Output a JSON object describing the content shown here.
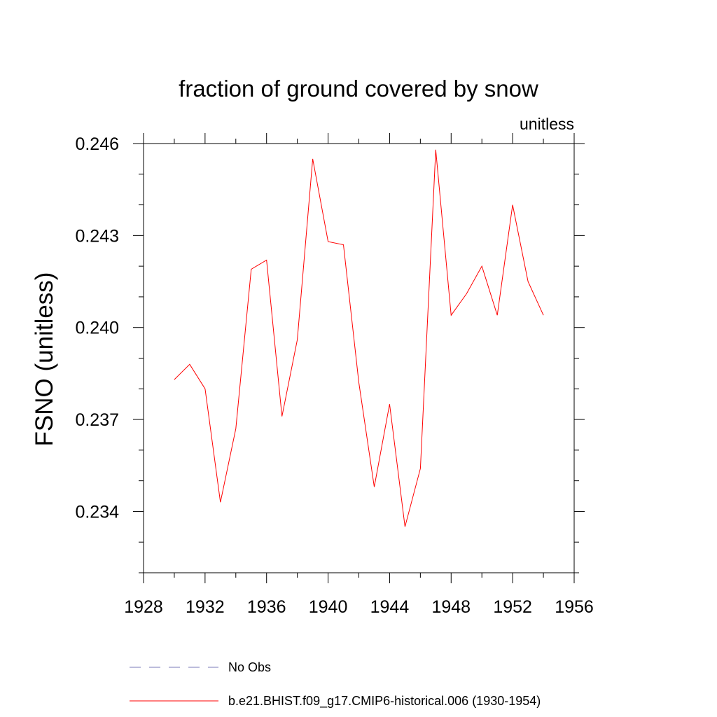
{
  "chart_data": {
    "type": "line",
    "title": "fraction of ground covered by snow",
    "units_label": "unitless",
    "xlabel": "",
    "ylabel": "FSNO  (unitless)",
    "xlim": [
      1928,
      1956
    ],
    "ylim": [
      0.232,
      0.246
    ],
    "x_ticks": [
      1928,
      1932,
      1936,
      1940,
      1944,
      1948,
      1952,
      1956
    ],
    "x_tick_labels": [
      "1928",
      "1932",
      "1936",
      "1940",
      "1944",
      "1948",
      "1952",
      "1956"
    ],
    "y_ticks": [
      0.234,
      0.237,
      0.24,
      0.243,
      0.246
    ],
    "y_tick_labels": [
      "0.234",
      "0.237",
      "0.240",
      "0.243",
      "0.246"
    ],
    "grid": false,
    "legend_position": "bottom",
    "series": [
      {
        "name": "b.e21.BHIST.f09_g17.CMIP6-historical.006 (1930-1954)",
        "color": "#ff0000",
        "style": "solid",
        "x": [
          1930,
          1931,
          1932,
          1933,
          1934,
          1935,
          1936,
          1937,
          1938,
          1939,
          1940,
          1941,
          1942,
          1943,
          1944,
          1945,
          1946,
          1947,
          1948,
          1949,
          1950,
          1951,
          1952,
          1953,
          1954
        ],
        "y": [
          0.2383,
          0.2388,
          0.238,
          0.2343,
          0.2367,
          0.2419,
          0.2422,
          0.2371,
          0.2396,
          0.2455,
          0.2428,
          0.2427,
          0.2382,
          0.2348,
          0.2375,
          0.2335,
          0.2354,
          0.2458,
          0.2404,
          0.2411,
          0.242,
          0.2404,
          0.244,
          0.2415,
          0.2404
        ]
      }
    ],
    "legend": [
      {
        "label": "No Obs",
        "color": "#7a7ab8",
        "style": "dashed"
      },
      {
        "label": "b.e21.BHIST.f09_g17.CMIP6-historical.006 (1930-1954)",
        "color": "#ff0000",
        "style": "solid"
      }
    ]
  }
}
